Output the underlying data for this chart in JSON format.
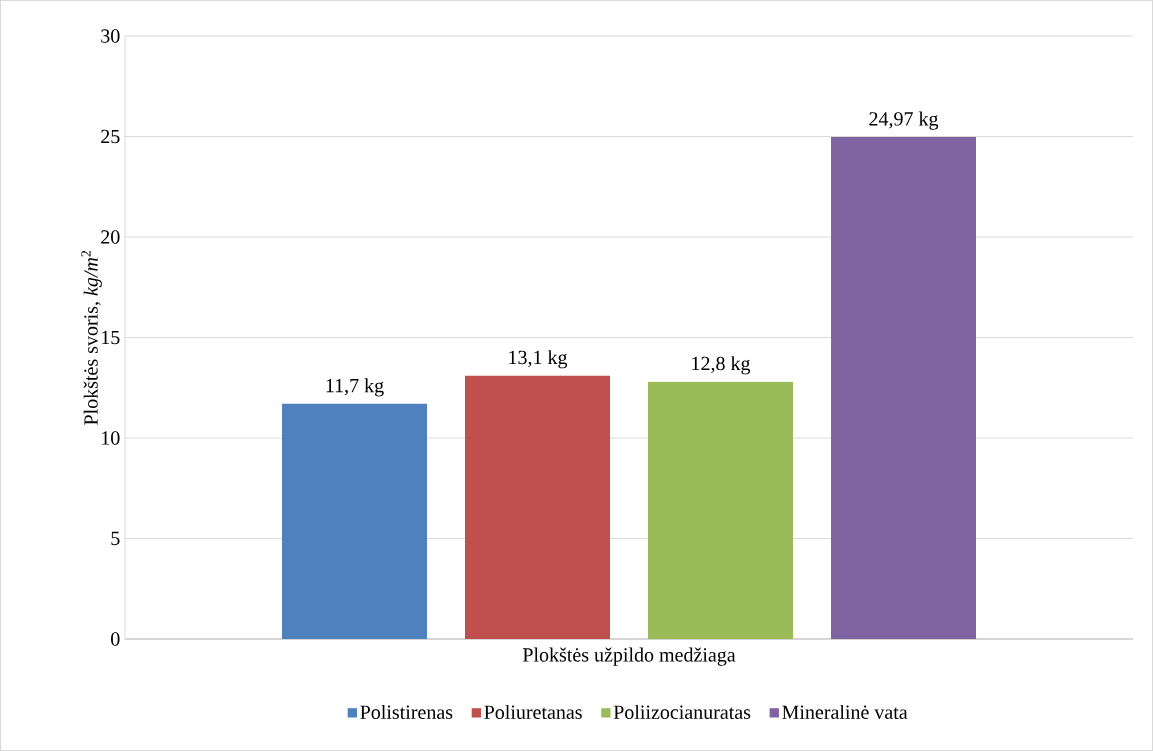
{
  "chart_data": {
    "type": "bar",
    "xlabel": "Plokštės užpildo medžiaga",
    "ylabel": "Plokštės svoris, *kg/m*$^{2}$",
    "categories": [
      null
    ],
    "series": [
      {
        "name": "Polistirenas",
        "color": "#4f81bd",
        "values": [
          11.7
        ],
        "value_labels": [
          "11,7 kg"
        ]
      },
      {
        "name": "Poliuretanas",
        "color": "#c0504d",
        "values": [
          13.1
        ],
        "value_labels": [
          "13,1 kg"
        ]
      },
      {
        "name": "Poliizocianuratas",
        "color": "#9bbb59",
        "values": [
          12.8
        ],
        "value_labels": [
          "12,8 kg"
        ]
      },
      {
        "name": "Mineralinė vata",
        "color": "#8064a2",
        "values": [
          24.97
        ],
        "value_labels": [
          "24,97 kg"
        ]
      }
    ],
    "ylim": [
      0,
      30
    ],
    "yticks": [
      0,
      5,
      10,
      15,
      20,
      25,
      30
    ],
    "grid": "y",
    "legend": "bottom"
  }
}
